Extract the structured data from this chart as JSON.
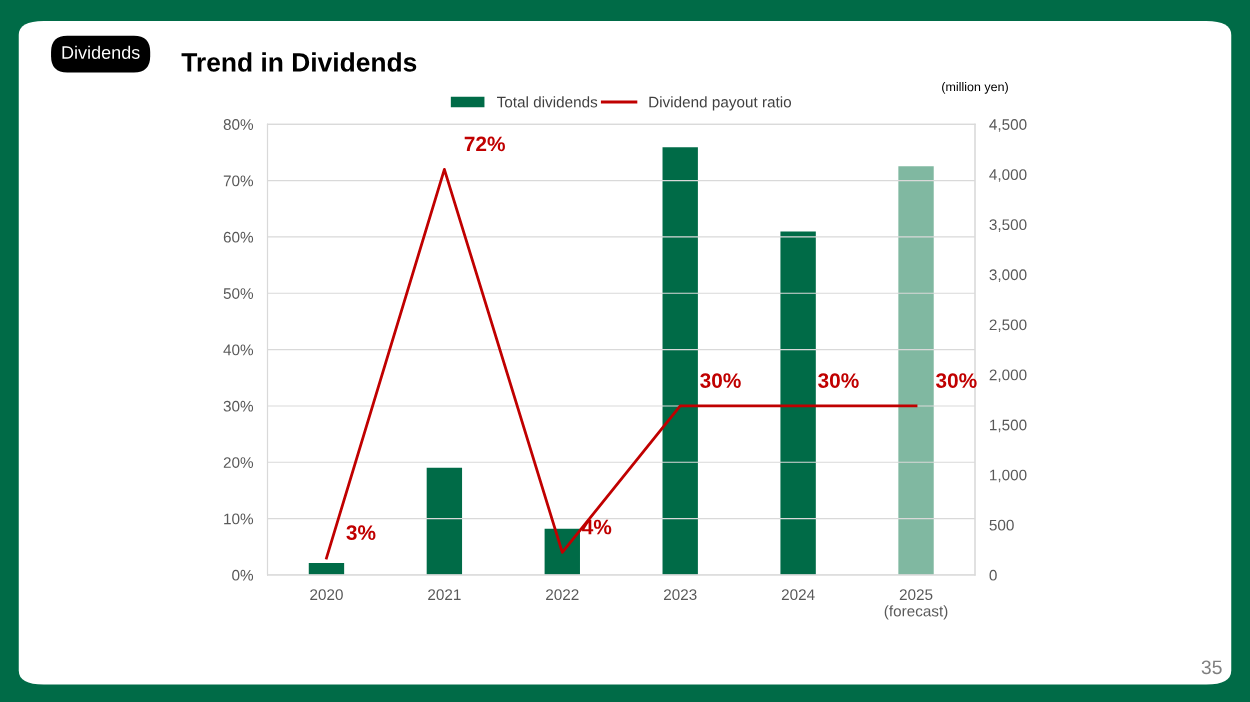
{
  "chart_data": {
    "type": "bar",
    "title": "Trend in Dividends",
    "categories": [
      "2020",
      "2021",
      "2022",
      "2023",
      "2024",
      "2025\n(forecast)"
    ],
    "series": [
      {
        "name": "Total dividends",
        "axis": "y2",
        "color": "#006b47",
        "colors": [
          "#006b47",
          "#006b47",
          "#006b47",
          "#006b47",
          "#006b47",
          "#80b8a1"
        ],
        "values": [
          120,
          1070,
          460,
          4270,
          3430,
          4080
        ]
      },
      {
        "name": "Dividend payout ratio",
        "type": "line",
        "axis": "y",
        "color": "#c00000",
        "values": [
          3,
          72,
          4,
          30,
          30,
          30
        ],
        "value_labels": [
          "3%",
          "72%",
          "4%",
          "30%",
          "30%",
          "30%"
        ]
      }
    ],
    "ylim": [
      0,
      80
    ],
    "yticks": [
      {
        "value": 0,
        "label": "0%"
      },
      {
        "value": 10,
        "label": "10%"
      },
      {
        "value": 20,
        "label": "20%"
      },
      {
        "value": 30,
        "label": "30%"
      },
      {
        "value": 40,
        "label": "40%"
      },
      {
        "value": 50,
        "label": "50%"
      },
      {
        "value": 60,
        "label": "60%"
      },
      {
        "value": 70,
        "label": "70%"
      },
      {
        "value": 80,
        "label": "80%"
      }
    ],
    "y2lim": [
      0,
      4500
    ],
    "y2ticks": [
      0,
      500,
      {
        "value": 1000,
        "label": "1,000"
      },
      {
        "value": 1500,
        "label": "1,500"
      },
      {
        "value": 2000,
        "label": "2,000"
      },
      {
        "value": 2500,
        "label": "2,500"
      },
      {
        "value": 3000,
        "label": "3,000"
      },
      {
        "value": 3500,
        "label": "3,500"
      },
      {
        "value": 4000,
        "label": "4,000"
      },
      {
        "value": 4500,
        "label": "4,500"
      }
    ],
    "y2label": "(million yen)",
    "grid": "y",
    "legend": "top",
    "marker": "none",
    "line_style": "solid",
    "annotations": [
      "Dividends",
      "35"
    ]
  }
}
